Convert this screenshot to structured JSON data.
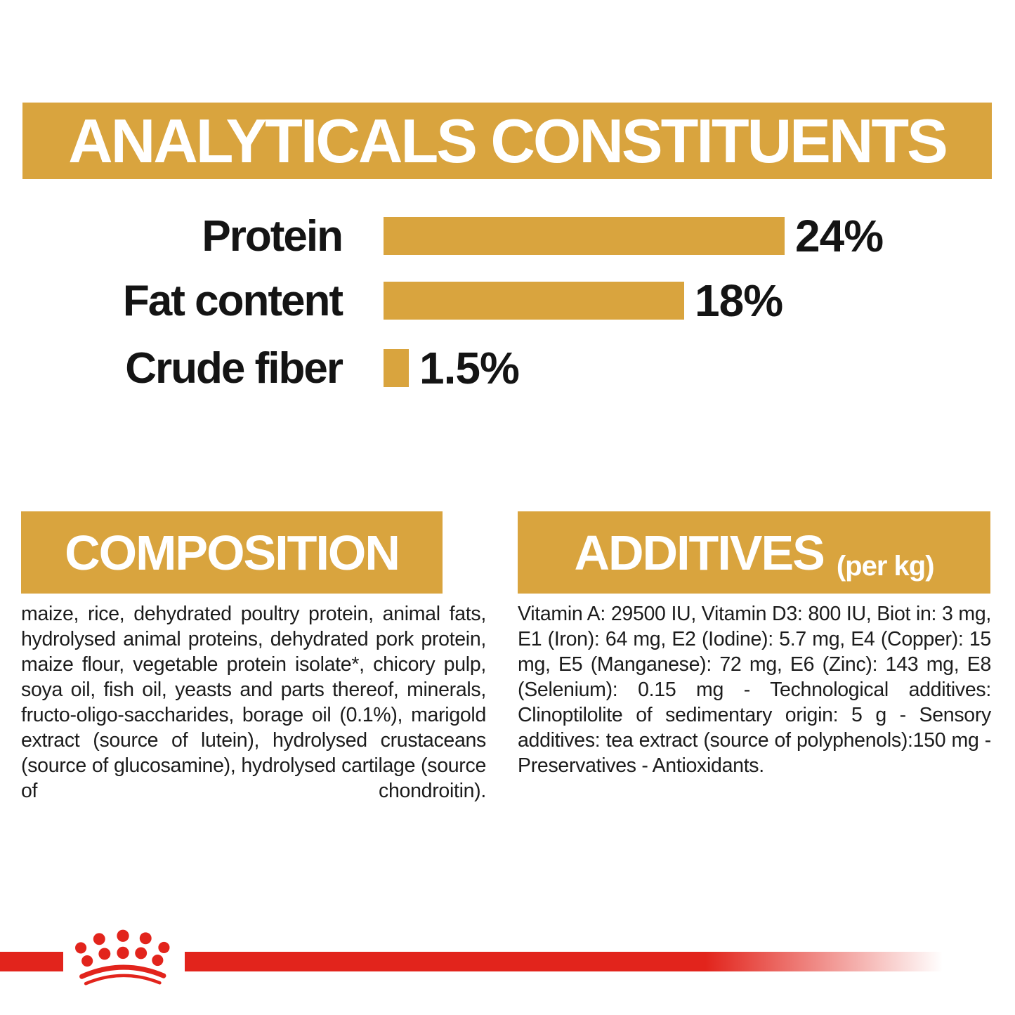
{
  "colors": {
    "gold": "#D9A43E",
    "red": "#E2241C",
    "text_black": "#141414"
  },
  "analyticals": {
    "title": "ANALYTICALS CONSTITUENTS",
    "rows": [
      {
        "label": "Protein",
        "value": "24%",
        "percent": 24
      },
      {
        "label": "Fat content",
        "value": "18%",
        "percent": 18
      },
      {
        "label": "Crude fiber",
        "value": "1.5%",
        "percent": 1.5
      }
    ]
  },
  "chart_data": {
    "type": "bar",
    "orientation": "horizontal",
    "title": "ANALYTICALS CONSTITUENTS",
    "categories": [
      "Protein",
      "Fat content",
      "Crude fiber"
    ],
    "values": [
      24,
      18,
      1.5
    ],
    "unit": "%",
    "data_labels": [
      "24%",
      "18%",
      "1.5%"
    ],
    "bar_color": "#D9A43E",
    "xlim": [
      0,
      24
    ],
    "grid": false,
    "legend": "none"
  },
  "composition": {
    "title": "COMPOSITION",
    "body": "maize, rice, dehydrated poultry protein, animal fats, hydrolysed animal proteins, dehydrated pork protein, maize flour, vegetable protein isolate*, chicory pulp, soya oil, fish oil, yeasts and parts thereof, minerals, fructo-oligo-saccharides, borage oil (0.1%), marigold extract (source of lutein), hydrolysed crustaceans (source of glucosamine), hydrolysed cartilage (source of chondroitin)."
  },
  "additives": {
    "title": "ADDITIVES",
    "unit": "(per kg)",
    "body": "Vitamin A: 29500 IU, Vitamin D3: 800 IU, Biot in: 3 mg, E1 (Iron): 64 mg, E2 (Iodine): 5.7 mg, E4 (Copper): 15 mg, E5 (Manganese): 72 mg, E6 (Zinc): 143 mg, E8 (Selenium): 0.15 mg - Technological additives: Clinoptilolite of sedimentary origin: 5 g - Sensory additives: tea extract (source of polyphenols):150 mg - Preservatives - Antioxidants."
  },
  "footer": {
    "logo": "royal-canin-crown"
  }
}
